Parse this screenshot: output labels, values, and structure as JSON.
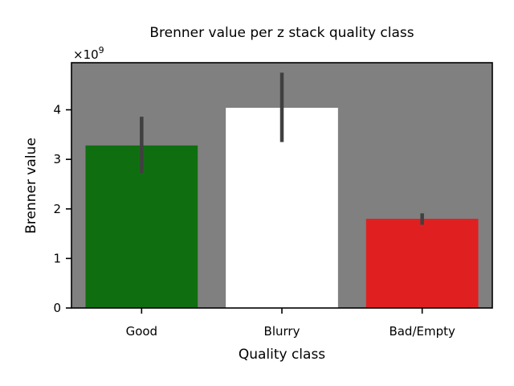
{
  "chart_data": {
    "type": "bar",
    "title": "Brenner value per z stack quality class",
    "xlabel": "Quality class",
    "ylabel": "Brenner value",
    "y_scale_exponent": "9",
    "y_scale_prefix": "×10",
    "categories": [
      "Good",
      "Blurry",
      "Bad/Empty"
    ],
    "values": [
      3.28,
      4.04,
      1.8
    ],
    "error_low": [
      2.72,
      3.35,
      1.68
    ],
    "error_high": [
      3.86,
      4.75,
      1.91
    ],
    "bar_colors": [
      "#0f6f10",
      "#ffffff",
      "#e02020"
    ],
    "error_bar_color": "#404040",
    "plot_background": "#808080",
    "ylim": [
      0,
      4.95
    ],
    "yticks": [
      0,
      1,
      2,
      3,
      4
    ],
    "ytick_labels": [
      "0",
      "1",
      "2",
      "3",
      "4"
    ],
    "grid": false,
    "legend": "none"
  }
}
